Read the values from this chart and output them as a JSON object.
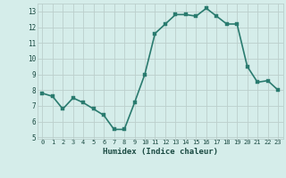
{
  "x": [
    0,
    1,
    2,
    3,
    4,
    5,
    6,
    7,
    8,
    9,
    10,
    11,
    12,
    13,
    14,
    15,
    16,
    17,
    18,
    19,
    20,
    21,
    22,
    23
  ],
  "y": [
    7.8,
    7.6,
    6.8,
    7.5,
    7.2,
    6.8,
    6.4,
    5.5,
    5.5,
    7.2,
    9.0,
    11.6,
    12.2,
    12.8,
    12.8,
    12.7,
    13.2,
    12.7,
    12.2,
    12.2,
    9.5,
    8.5,
    8.6,
    8.0
  ],
  "xlabel": "Humidex (Indice chaleur)",
  "xlim": [
    -0.5,
    23.5
  ],
  "ylim": [
    4.9,
    13.5
  ],
  "yticks": [
    5,
    6,
    7,
    8,
    9,
    10,
    11,
    12,
    13
  ],
  "xticks": [
    0,
    1,
    2,
    3,
    4,
    5,
    6,
    7,
    8,
    9,
    10,
    11,
    12,
    13,
    14,
    15,
    16,
    17,
    18,
    19,
    20,
    21,
    22,
    23
  ],
  "line_color": "#2A7B6F",
  "marker_color": "#2A7B6F",
  "bg_color": "#D5EDEA",
  "grid_color": "#BBCFCC",
  "tick_label_color": "#1A4A42",
  "xlabel_color": "#1A4A42",
  "line_width": 1.2,
  "marker_size": 2.5
}
